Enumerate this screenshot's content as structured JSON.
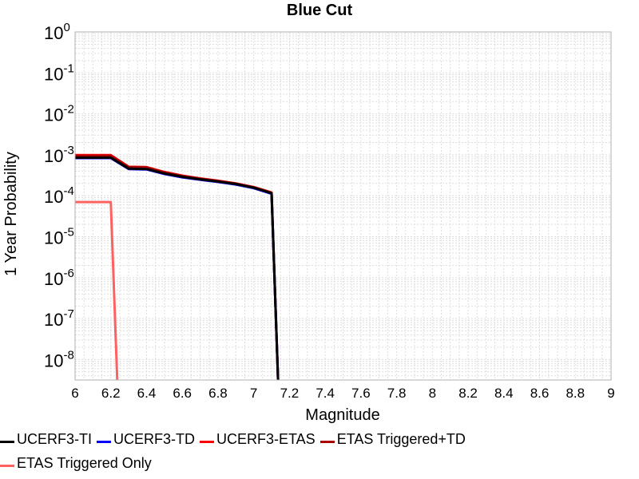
{
  "chart_data": {
    "type": "line",
    "title": "Blue Cut",
    "xlabel": "Magnitude",
    "ylabel": "1 Year Probability",
    "xlim": [
      6,
      9
    ],
    "ylim_exponents": [
      -8.5,
      0
    ],
    "yscale": "log",
    "grid": true,
    "x_ticks": [
      "6",
      "6.2",
      "6.4",
      "6.6",
      "6.8",
      "7",
      "7.2",
      "7.4",
      "7.6",
      "7.8",
      "8",
      "8.2",
      "8.4",
      "8.6",
      "8.8",
      "9"
    ],
    "y_tick_exponents": [
      "0",
      "-1",
      "-2",
      "-3",
      "-4",
      "-5",
      "-6",
      "-7",
      "-8"
    ],
    "y_tick_base": "10",
    "legend_position": "bottom",
    "series": [
      {
        "name": "UCERF3-TI",
        "color": "#000000",
        "x": [
          6.0,
          6.2,
          6.3,
          6.4,
          6.5,
          6.6,
          6.7,
          6.8,
          6.9,
          7.0,
          7.1,
          7.14
        ],
        "y": [
          0.00085,
          0.00085,
          0.00046,
          0.00045,
          0.00035,
          0.00029,
          0.000252,
          0.000222,
          0.000193,
          0.000157,
          0.000115,
          1e-09
        ]
      },
      {
        "name": "UCERF3-TD",
        "color": "#0000ff",
        "x": [
          6.0,
          6.2,
          6.3,
          6.4,
          6.5,
          6.6,
          6.7,
          6.8,
          6.9,
          7.0,
          7.1,
          7.14
        ],
        "y": [
          0.00083,
          0.00083,
          0.00045,
          0.00044,
          0.00034,
          0.00028,
          0.000245,
          0.000217,
          0.000188,
          0.000153,
          0.000112,
          1e-09
        ]
      },
      {
        "name": "UCERF3-ETAS",
        "color": "#ff0000",
        "x": [
          6.0,
          6.2,
          6.3,
          6.4,
          6.5,
          6.6,
          6.7,
          6.8,
          6.9,
          7.0,
          7.1,
          7.14
        ],
        "y": [
          0.00098,
          0.00098,
          0.00051,
          0.0005,
          0.00038,
          0.00031,
          0.000265,
          0.000232,
          0.0002,
          0.000163,
          0.00012,
          1e-09
        ]
      },
      {
        "name": "ETAS Triggered+TD",
        "color": "#aa0000",
        "x": [
          6.0,
          6.2,
          6.3,
          6.4,
          6.5,
          6.6,
          6.7,
          6.8,
          6.9,
          7.0,
          7.1,
          7.14
        ],
        "y": [
          0.00094,
          0.00094,
          0.0005,
          0.00049,
          0.00037,
          0.000302,
          0.00026,
          0.000228,
          0.000197,
          0.00016,
          0.000118,
          1e-09
        ]
      },
      {
        "name": "ETAS Triggered Only",
        "color": "#ff6060",
        "x": [
          6.0,
          6.2,
          6.24
        ],
        "y": [
          7e-05,
          7e-05,
          1e-09
        ]
      }
    ]
  }
}
